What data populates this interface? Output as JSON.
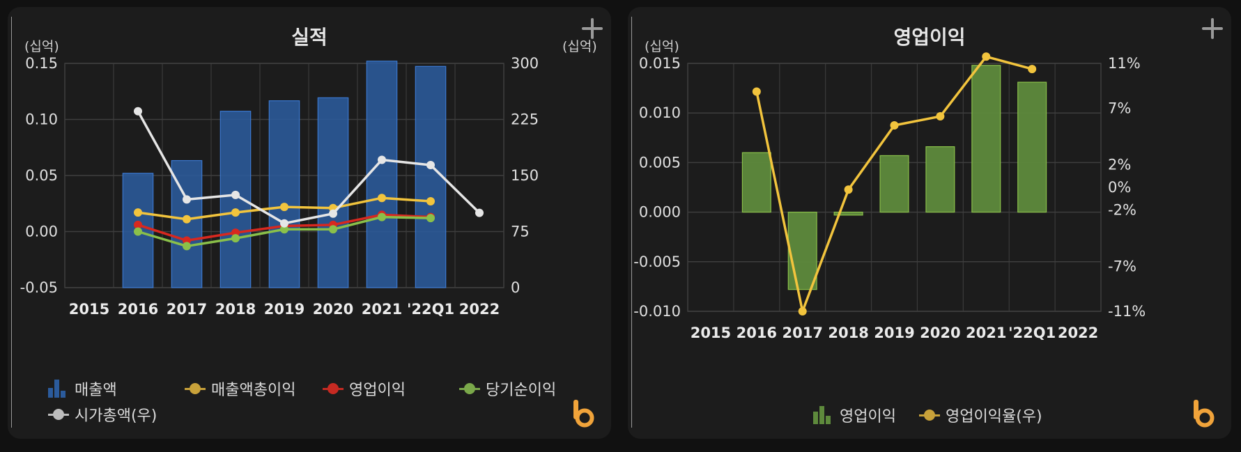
{
  "chart_data": [
    {
      "type": "bar",
      "title": "실적",
      "unit_left": "(십억)",
      "unit_right": "(십억)",
      "categories": [
        "2015",
        "2016",
        "2017",
        "2018",
        "2019",
        "2020",
        "2021",
        "'22Q1",
        "2022"
      ],
      "ylim_left": [
        -0.05,
        0.15
      ],
      "yticks_left": [
        "0.15",
        "0.10",
        "0.05",
        "0.00",
        "-0.05"
      ],
      "ylim_right": [
        0,
        300
      ],
      "yticks_right": [
        "300",
        "225",
        "150",
        "75",
        "0"
      ],
      "grid": true,
      "series": [
        {
          "name": "매출액",
          "kind": "bar",
          "axis": "right",
          "color": "#2b5b9c",
          "values": [
            null,
            153,
            170,
            236,
            250,
            254,
            303,
            296,
            null
          ]
        },
        {
          "name": "매출액총이익",
          "kind": "line",
          "axis": "left",
          "color": "#f2c43d",
          "values": [
            null,
            0.017,
            0.011,
            0.017,
            0.022,
            0.021,
            0.03,
            0.027,
            null
          ]
        },
        {
          "name": "영업이익",
          "kind": "line",
          "axis": "left",
          "color": "#d8281f",
          "values": [
            null,
            0.006,
            -0.008,
            -0.001,
            0.005,
            0.006,
            0.015,
            0.013,
            null
          ]
        },
        {
          "name": "당기순이익",
          "kind": "line",
          "axis": "left",
          "color": "#8ac04a",
          "values": [
            null,
            0.0,
            -0.013,
            -0.006,
            0.002,
            0.002,
            0.013,
            0.012,
            null
          ]
        },
        {
          "name": "시가총액(우)",
          "kind": "line",
          "axis": "right",
          "color": "#e6e6e6",
          "values": [
            null,
            236,
            118,
            124,
            86,
            99,
            171,
            164,
            100
          ]
        }
      ],
      "legend": "bottom"
    },
    {
      "type": "bar",
      "title": "영업이익",
      "unit_left": "(십억)",
      "categories": [
        "2015",
        "2016",
        "2017",
        "2018",
        "2019",
        "2020",
        "2021",
        "'22Q1",
        "2022"
      ],
      "ylim_left": [
        -0.01,
        0.015
      ],
      "yticks_left": [
        "0.015",
        "0.010",
        "0.005",
        "0.000",
        "-0.005",
        "-0.010"
      ],
      "ylim_right": [
        -11,
        11
      ],
      "yticks_right": [
        "11%",
        "7%",
        "2%",
        "0%",
        "-2%",
        "-7%",
        "-11%"
      ],
      "ytick_values_right": [
        11,
        7,
        2,
        0,
        -2,
        -7,
        -11
      ],
      "grid": true,
      "series": [
        {
          "name": "영업이익",
          "kind": "bar",
          "axis": "left",
          "color": "#5e8a3c",
          "values": [
            null,
            0.006,
            -0.0078,
            -0.0003,
            0.0057,
            0.0066,
            0.0148,
            0.0131,
            null
          ]
        },
        {
          "name": "영업이익율(우)",
          "kind": "line",
          "axis": "right",
          "color": "#f2c43d",
          "values": [
            null,
            8.5,
            -11,
            -0.2,
            5.5,
            6.3,
            11.6,
            10.5,
            null
          ]
        }
      ],
      "legend": "bottom"
    }
  ],
  "ui": {
    "plus_icon": "plus-icon",
    "logo_icon": "brand-b-logo-icon",
    "logo_color": "#f0a33a"
  }
}
